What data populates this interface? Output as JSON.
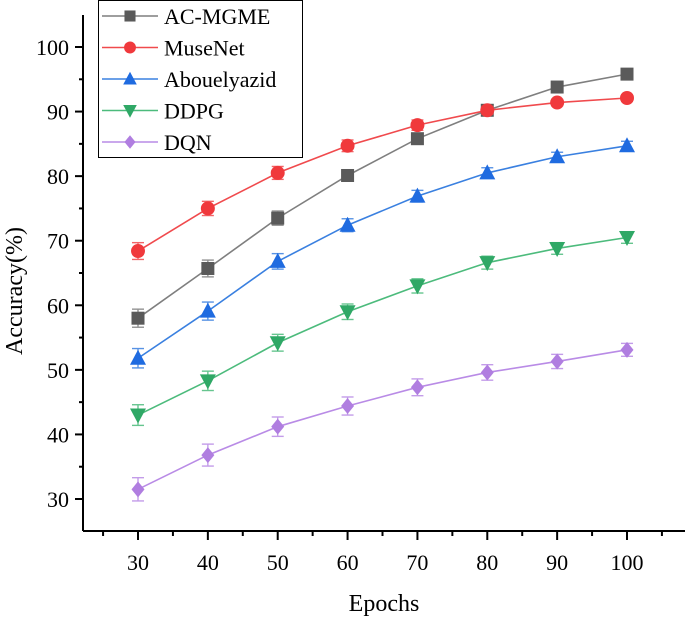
{
  "chart_data": {
    "type": "line",
    "title": "",
    "xlabel": "Epochs",
    "ylabel": "Accuracy(%)",
    "x": [
      30,
      40,
      50,
      60,
      70,
      80,
      90,
      100
    ],
    "xlim": [
      22,
      108
    ],
    "ylim": [
      25,
      100
    ],
    "xticks": [
      30,
      40,
      50,
      60,
      70,
      80,
      90,
      100
    ],
    "xtick_labels": [
      "30",
      "40",
      "50",
      "60",
      "70",
      "80",
      "90",
      "100"
    ],
    "yticks": [
      30,
      40,
      50,
      60,
      70,
      80,
      90,
      100
    ],
    "ytick_labels": [
      "30",
      "40",
      "50",
      "60",
      "70",
      "80",
      "90",
      "100"
    ],
    "grid": false,
    "error_bars": true,
    "legend_position": "top-left",
    "series": [
      {
        "name": "AC-MGME",
        "marker": "square",
        "color": "#5a5a5a",
        "line_color": "#7f7f7f",
        "values": [
          58.0,
          65.7,
          73.5,
          80.1,
          85.8,
          90.2,
          93.8,
          95.8
        ],
        "errors": [
          1.4,
          1.3,
          1.1,
          0.9,
          0.8,
          0.6,
          0.6,
          0.6
        ]
      },
      {
        "name": "MuseNet",
        "marker": "circle",
        "color": "#f0393c",
        "line_color": "#f04a4d",
        "values": [
          68.4,
          75.0,
          80.5,
          84.7,
          87.9,
          90.2,
          91.4,
          92.1
        ],
        "errors": [
          1.3,
          1.1,
          1.0,
          0.9,
          0.8,
          0.6,
          0.5,
          0.5
        ]
      },
      {
        "name": "Abouelyazid",
        "marker": "triangle-up",
        "color": "#1f6be0",
        "line_color": "#3a80e0",
        "values": [
          51.8,
          59.1,
          66.8,
          72.4,
          76.9,
          80.5,
          83.0,
          84.7
        ],
        "errors": [
          1.5,
          1.4,
          1.2,
          1.0,
          0.9,
          0.8,
          0.7,
          0.7
        ]
      },
      {
        "name": "DDPG",
        "marker": "triangle-down",
        "color": "#2fa866",
        "line_color": "#4cbb7c",
        "values": [
          43.0,
          48.3,
          54.2,
          59.0,
          63.0,
          66.6,
          68.8,
          70.5
        ],
        "errors": [
          1.6,
          1.5,
          1.3,
          1.2,
          1.1,
          1.0,
          0.9,
          0.9
        ]
      },
      {
        "name": "DQN",
        "marker": "diamond",
        "color": "#b07ee0",
        "line_color": "#b98be6",
        "values": [
          31.5,
          36.8,
          41.2,
          44.4,
          47.3,
          49.6,
          51.3,
          53.1
        ],
        "errors": [
          1.8,
          1.7,
          1.5,
          1.4,
          1.3,
          1.2,
          1.1,
          1.0
        ]
      }
    ]
  }
}
